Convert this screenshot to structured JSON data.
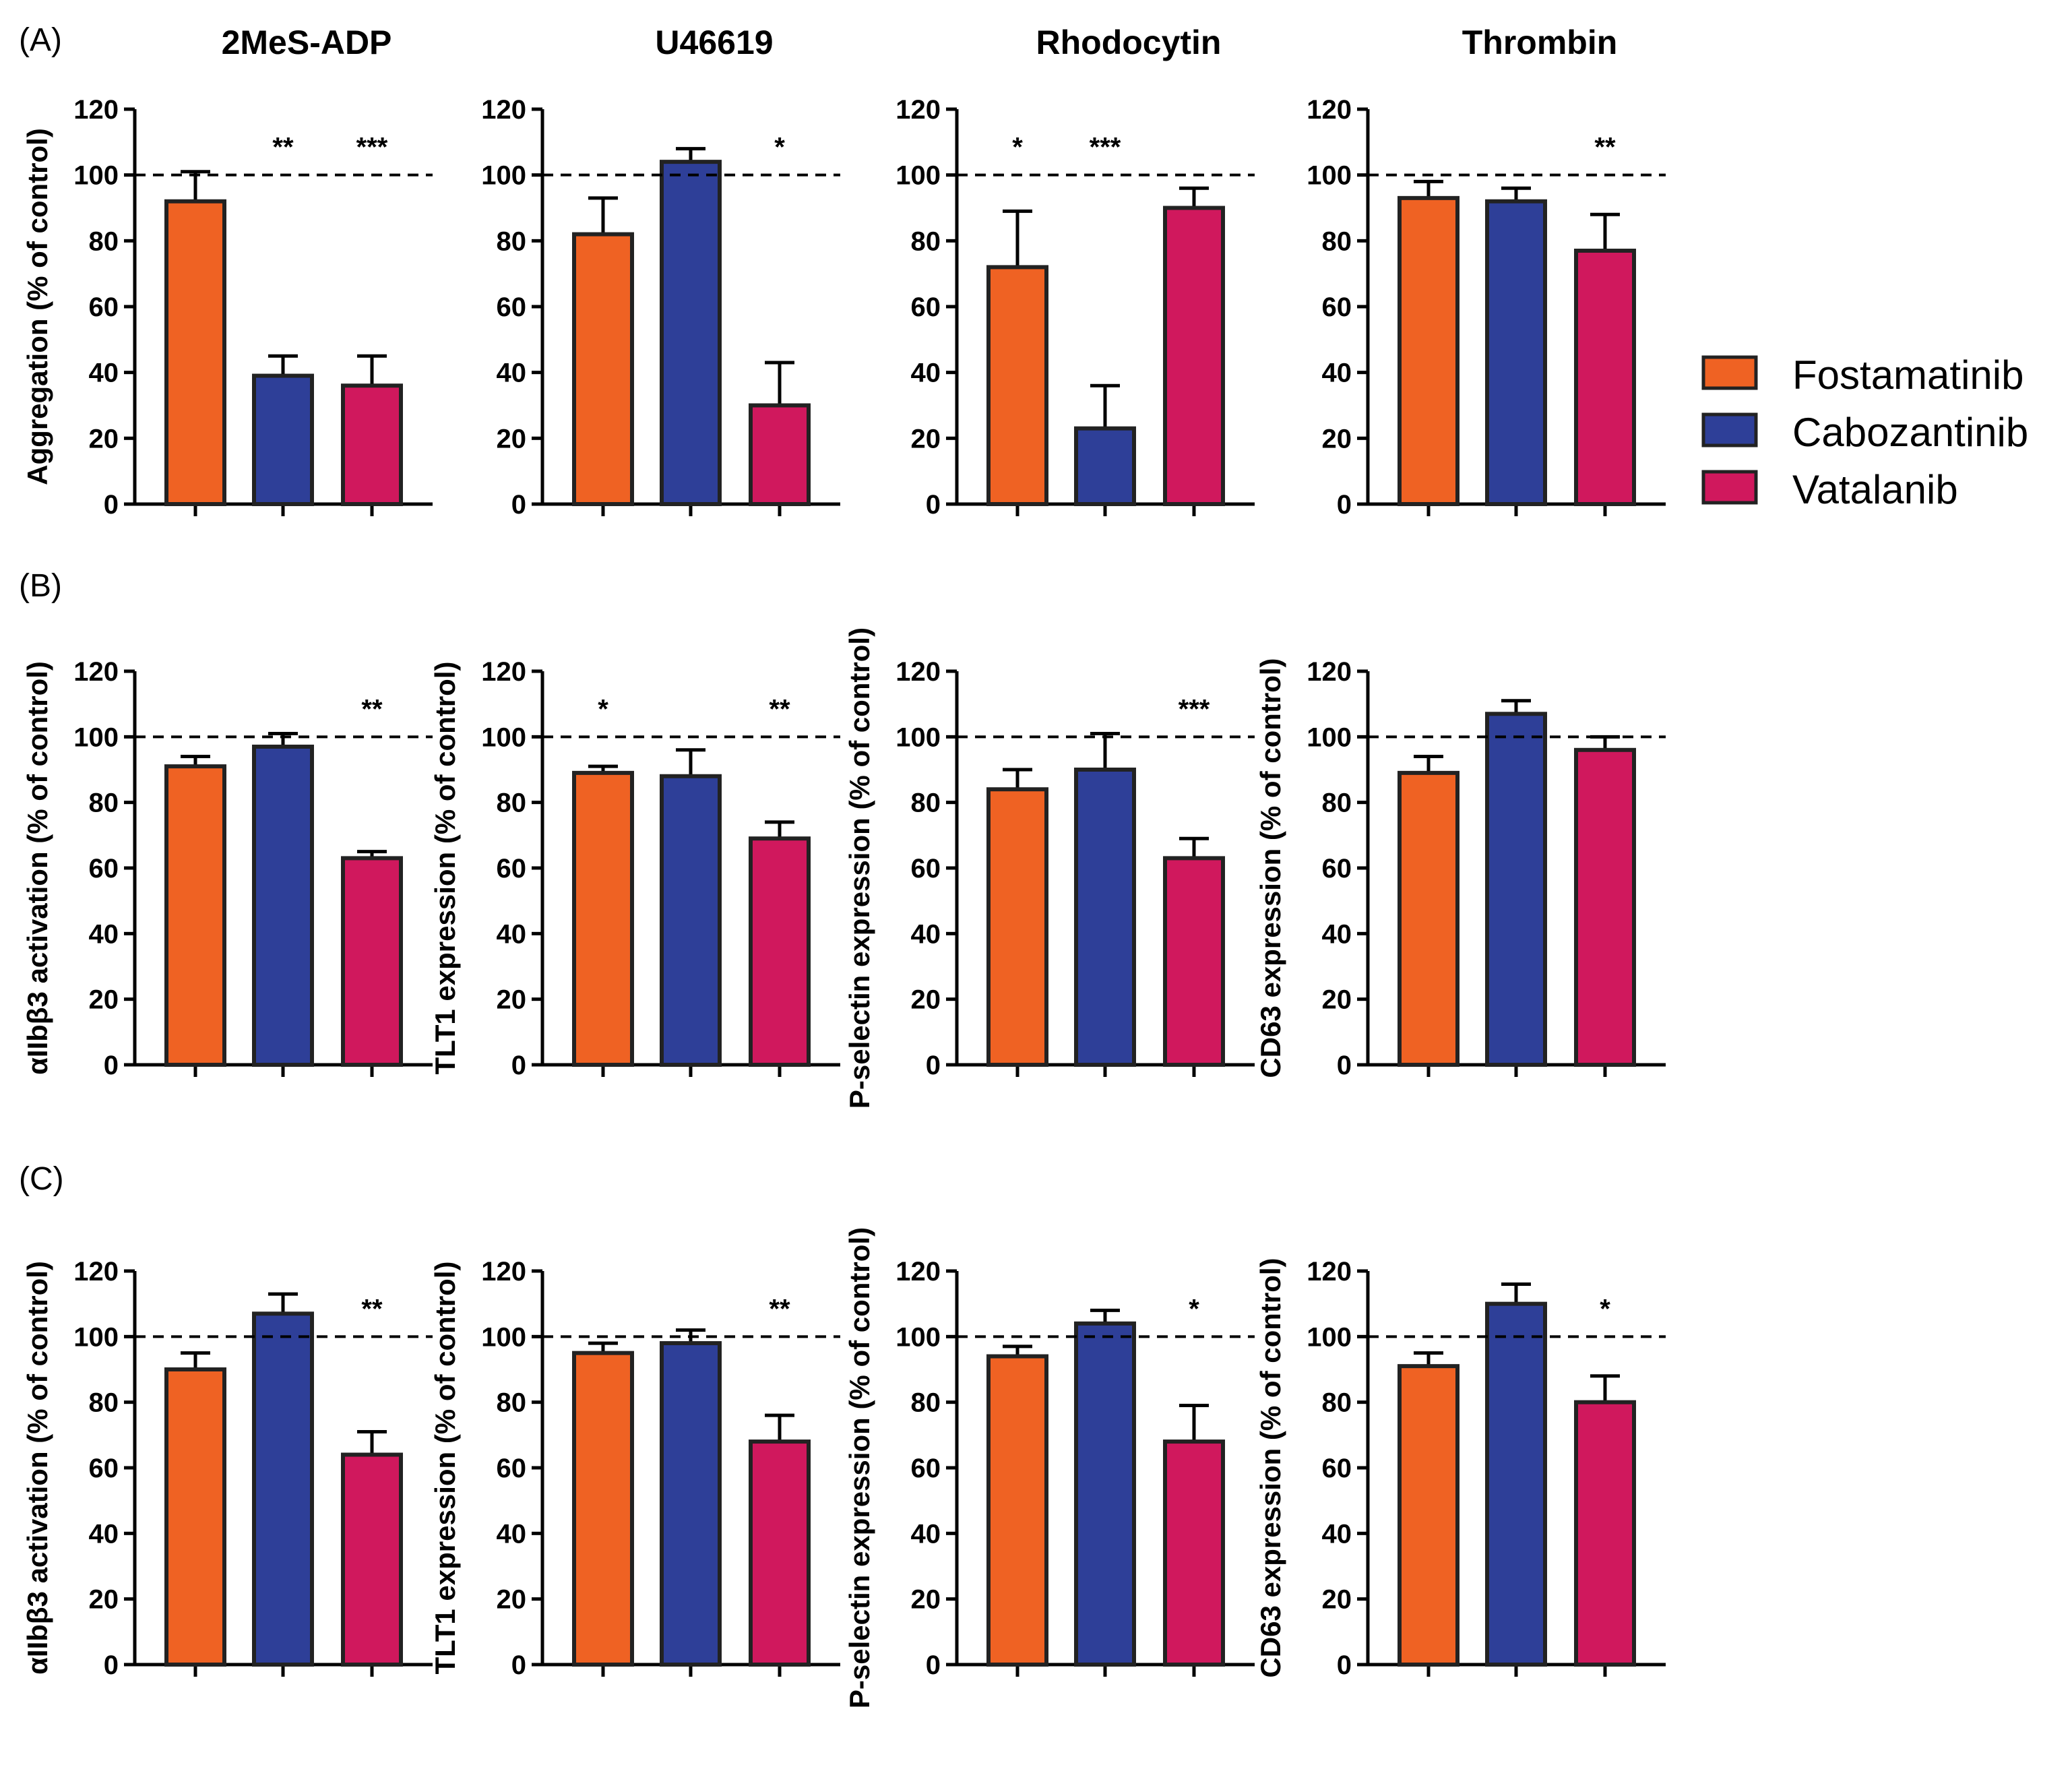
{
  "legend": [
    {
      "label": "Fostamatinib",
      "color": "#ef6223"
    },
    {
      "label": "Cabozantinib",
      "color": "#2e3f98"
    },
    {
      "label": "Vatalanib",
      "color": "#d0185d"
    }
  ],
  "panel_labels": [
    "(A)",
    "(B)",
    "(C)"
  ],
  "chart_data": [
    {
      "type": "bar",
      "panel": "(A)",
      "title": "2MeS-ADP",
      "ylabel": "Aggregation (% of control)",
      "ylim": [
        0,
        120
      ],
      "yticks": [
        0,
        20,
        40,
        60,
        80,
        100,
        120
      ],
      "reference_line": 100,
      "categories": [
        "Fostamatinib",
        "Cabozantinib",
        "Vatalanib"
      ],
      "values": [
        92,
        39,
        36
      ],
      "errors": [
        9,
        6,
        9
      ],
      "significance": [
        "",
        "**",
        "***"
      ]
    },
    {
      "type": "bar",
      "panel": "(A)",
      "title": "U46619",
      "ylabel": "",
      "ylim": [
        0,
        120
      ],
      "yticks": [
        0,
        20,
        40,
        60,
        80,
        100,
        120
      ],
      "reference_line": 100,
      "categories": [
        "Fostamatinib",
        "Cabozantinib",
        "Vatalanib"
      ],
      "values": [
        82,
        104,
        30
      ],
      "errors": [
        11,
        4,
        13
      ],
      "significance": [
        "",
        "",
        "*"
      ]
    },
    {
      "type": "bar",
      "panel": "(A)",
      "title": "Rhodocytin",
      "ylabel": "",
      "ylim": [
        0,
        120
      ],
      "yticks": [
        0,
        20,
        40,
        60,
        80,
        100,
        120
      ],
      "reference_line": 100,
      "categories": [
        "Fostamatinib",
        "Cabozantinib",
        "Vatalanib"
      ],
      "values": [
        72,
        23,
        90
      ],
      "errors": [
        17,
        13,
        6
      ],
      "significance": [
        "*",
        "***",
        ""
      ]
    },
    {
      "type": "bar",
      "panel": "(A)",
      "title": "Thrombin",
      "ylabel": "",
      "ylim": [
        0,
        120
      ],
      "yticks": [
        0,
        20,
        40,
        60,
        80,
        100,
        120
      ],
      "reference_line": 100,
      "categories": [
        "Fostamatinib",
        "Cabozantinib",
        "Vatalanib"
      ],
      "values": [
        93,
        92,
        77
      ],
      "errors": [
        5,
        4,
        11
      ],
      "significance": [
        "",
        "",
        "**"
      ]
    },
    {
      "type": "bar",
      "panel": "(B)",
      "title": "",
      "ylabel": "αIIbβ3 activation (% of control)",
      "ylim": [
        0,
        120
      ],
      "yticks": [
        0,
        20,
        40,
        60,
        80,
        100,
        120
      ],
      "reference_line": 100,
      "categories": [
        "Fostamatinib",
        "Cabozantinib",
        "Vatalanib"
      ],
      "values": [
        91,
        97,
        63
      ],
      "errors": [
        3,
        4,
        2
      ],
      "significance": [
        "",
        "",
        "**"
      ]
    },
    {
      "type": "bar",
      "panel": "(B)",
      "title": "",
      "ylabel": "TLT1 expression  (% of control)",
      "ylim": [
        0,
        120
      ],
      "yticks": [
        0,
        20,
        40,
        60,
        80,
        100,
        120
      ],
      "reference_line": 100,
      "categories": [
        "Fostamatinib",
        "Cabozantinib",
        "Vatalanib"
      ],
      "values": [
        89,
        88,
        69
      ],
      "errors": [
        2,
        8,
        5
      ],
      "significance": [
        "*",
        "",
        "**"
      ]
    },
    {
      "type": "bar",
      "panel": "(B)",
      "title": "",
      "ylabel": "P-selectin expression (% of control)",
      "ylim": [
        0,
        120
      ],
      "yticks": [
        0,
        20,
        40,
        60,
        80,
        100,
        120
      ],
      "reference_line": 100,
      "categories": [
        "Fostamatinib",
        "Cabozantinib",
        "Vatalanib"
      ],
      "values": [
        84,
        90,
        63
      ],
      "errors": [
        6,
        11,
        6
      ],
      "significance": [
        "",
        "",
        "***"
      ]
    },
    {
      "type": "bar",
      "panel": "(B)",
      "title": "",
      "ylabel": "CD63 expression (% of control)",
      "ylim": [
        0,
        120
      ],
      "yticks": [
        0,
        20,
        40,
        60,
        80,
        100,
        120
      ],
      "reference_line": 100,
      "categories": [
        "Fostamatinib",
        "Cabozantinib",
        "Vatalanib"
      ],
      "values": [
        89,
        107,
        96
      ],
      "errors": [
        5,
        4,
        4
      ],
      "significance": [
        "",
        "",
        ""
      ]
    },
    {
      "type": "bar",
      "panel": "(C)",
      "title": "",
      "ylabel": "αIIbβ3 activation (% of control)",
      "ylim": [
        0,
        120
      ],
      "yticks": [
        0,
        20,
        40,
        60,
        80,
        100,
        120
      ],
      "reference_line": 100,
      "categories": [
        "Fostamatinib",
        "Cabozantinib",
        "Vatalanib"
      ],
      "values": [
        90,
        107,
        64
      ],
      "errors": [
        5,
        6,
        7
      ],
      "significance": [
        "",
        "",
        "**"
      ]
    },
    {
      "type": "bar",
      "panel": "(C)",
      "title": "",
      "ylabel": "TLT1 expression  (% of control)",
      "ylim": [
        0,
        120
      ],
      "yticks": [
        0,
        20,
        40,
        60,
        80,
        100,
        120
      ],
      "reference_line": 100,
      "categories": [
        "Fostamatinib",
        "Cabozantinib",
        "Vatalanib"
      ],
      "values": [
        95,
        98,
        68
      ],
      "errors": [
        3,
        4,
        8
      ],
      "significance": [
        "",
        "",
        "**"
      ]
    },
    {
      "type": "bar",
      "panel": "(C)",
      "title": "",
      "ylabel": "P-selectin expression (% of control)",
      "ylim": [
        0,
        120
      ],
      "yticks": [
        0,
        20,
        40,
        60,
        80,
        100,
        120
      ],
      "reference_line": 100,
      "categories": [
        "Fostamatinib",
        "Cabozantinib",
        "Vatalanib"
      ],
      "values": [
        94,
        104,
        68
      ],
      "errors": [
        3,
        4,
        11
      ],
      "significance": [
        "",
        "",
        "*"
      ]
    },
    {
      "type": "bar",
      "panel": "(C)",
      "title": "",
      "ylabel": "CD63 expression (% of control)",
      "ylim": [
        0,
        120
      ],
      "yticks": [
        0,
        20,
        40,
        60,
        80,
        100,
        120
      ],
      "reference_line": 100,
      "categories": [
        "Fostamatinib",
        "Cabozantinib",
        "Vatalanib"
      ],
      "values": [
        91,
        110,
        80
      ],
      "errors": [
        4,
        6,
        8
      ],
      "significance": [
        "",
        "",
        "*"
      ]
    }
  ]
}
